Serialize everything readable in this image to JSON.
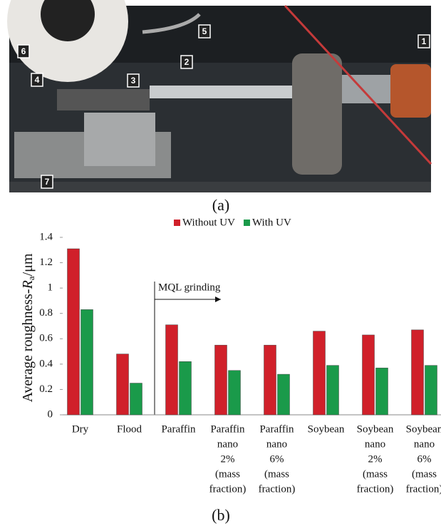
{
  "photo_labels": [
    "1",
    "2",
    "3",
    "4",
    "5",
    "6",
    "7"
  ],
  "panel_labels": [
    "(a)",
    "(b)"
  ],
  "chart_data": {
    "type": "bar",
    "y_label": [
      "Average roughness-",
      "R",
      "a",
      "/μm"
    ],
    "annotation": "MQL grinding",
    "categories": [
      [
        "Dry"
      ],
      [
        "Flood"
      ],
      [
        "Paraffin"
      ],
      [
        "Paraffin",
        "nano",
        "2%",
        "(mass",
        "fraction)"
      ],
      [
        "Paraffin",
        "nano",
        "6%",
        "(mass",
        "fraction)"
      ],
      [
        "Soybean"
      ],
      [
        "Soybean",
        "nano",
        "2%",
        "(mass",
        "fraction)"
      ],
      [
        "Soybean",
        "nano",
        "6%",
        "(mass",
        "fraction)"
      ]
    ],
    "series": [
      {
        "name": "Without UV",
        "color": "#d0202a",
        "values": [
          1.31,
          0.48,
          0.71,
          0.55,
          0.55,
          0.66,
          0.63,
          0.67
        ]
      },
      {
        "name": "With UV",
        "color": "#1a9a4a",
        "values": [
          0.83,
          0.25,
          0.42,
          0.35,
          0.32,
          0.39,
          0.37,
          0.39
        ]
      }
    ],
    "ylim": [
      0,
      1.4
    ],
    "yticks": [
      0,
      0.2,
      0.4,
      0.6,
      0.8,
      1,
      1.2,
      1.4
    ],
    "grid": false,
    "legend": "top"
  }
}
